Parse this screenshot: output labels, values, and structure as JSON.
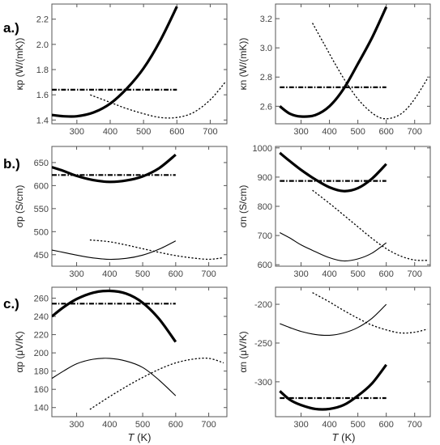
{
  "panel_labels": [
    "a.)",
    "b.)",
    "c.)"
  ],
  "chart_data": [
    {
      "id": "kp",
      "type": "line",
      "panel": "a.)",
      "ylabel": "κp (W/(mK))",
      "xlim": [
        225,
        750
      ],
      "ylim": [
        1.37,
        2.32
      ],
      "xticks": [
        300,
        400,
        500,
        600,
        700
      ],
      "yticks": [
        1.4,
        1.6,
        1.8,
        2.0,
        2.2
      ],
      "ytick_labels": [
        "1.4",
        "1.6",
        "1.8",
        "2.0",
        "2.2"
      ],
      "show_xticklabels": true,
      "series": [
        {
          "style": "thick",
          "x": [
            225,
            260,
            300,
            350,
            400,
            450,
            500,
            550,
            600
          ],
          "y": [
            1.44,
            1.43,
            1.43,
            1.46,
            1.53,
            1.65,
            1.81,
            2.03,
            2.3
          ]
        },
        {
          "style": "thin-dotted",
          "x": [
            340,
            400,
            450,
            500,
            550,
            600,
            650,
            700,
            745
          ],
          "y": [
            1.6,
            1.54,
            1.49,
            1.45,
            1.42,
            1.42,
            1.46,
            1.56,
            1.7
          ]
        },
        {
          "style": "dashdot",
          "x": [
            225,
            600
          ],
          "y": [
            1.64,
            1.64
          ]
        }
      ]
    },
    {
      "id": "kn",
      "type": "line",
      "panel": "a.)",
      "ylabel": "κn (W/(mK))",
      "xlim": [
        210,
        755
      ],
      "ylim": [
        2.48,
        3.3
      ],
      "xticks": [
        300,
        400,
        500,
        600,
        700
      ],
      "yticks": [
        2.6,
        2.8,
        3.0,
        3.2
      ],
      "ytick_labels": [
        "2.6",
        "2.8",
        "3.0",
        "3.2"
      ],
      "show_xticklabels": true,
      "series": [
        {
          "style": "thick",
          "x": [
            225,
            260,
            300,
            350,
            400,
            450,
            500,
            550,
            600
          ],
          "y": [
            2.6,
            2.55,
            2.53,
            2.54,
            2.6,
            2.72,
            2.89,
            3.07,
            3.28
          ]
        },
        {
          "style": "thin-dotted",
          "x": [
            340,
            380,
            420,
            460,
            500,
            540,
            580,
            620,
            660,
            700,
            745
          ],
          "y": [
            3.17,
            3.03,
            2.89,
            2.76,
            2.65,
            2.57,
            2.52,
            2.52,
            2.56,
            2.65,
            2.79
          ]
        },
        {
          "style": "dashdot",
          "x": [
            225,
            600
          ],
          "y": [
            2.73,
            2.73
          ]
        }
      ]
    },
    {
      "id": "sp",
      "type": "line",
      "panel": "b.)",
      "ylabel": "σp (S/cm)",
      "xlim": [
        225,
        755
      ],
      "ylim": [
        425,
        685
      ],
      "xticks": [
        300,
        400,
        500,
        600,
        700
      ],
      "yticks": [
        450,
        500,
        550,
        600,
        650
      ],
      "ytick_labels": [
        "450",
        "500",
        "550",
        "600",
        "650"
      ],
      "show_xticklabels": true,
      "series": [
        {
          "style": "thick",
          "x": [
            225,
            260,
            300,
            350,
            400,
            450,
            500,
            550,
            600
          ],
          "y": [
            640,
            632,
            621,
            612,
            608,
            611,
            620,
            638,
            667
          ]
        },
        {
          "style": "thin",
          "x": [
            225,
            260,
            300,
            350,
            400,
            450,
            500,
            550,
            600
          ],
          "y": [
            460,
            455,
            449,
            443,
            440,
            442,
            449,
            462,
            480
          ]
        },
        {
          "style": "thin-dotted",
          "x": [
            340,
            400,
            450,
            500,
            550,
            600,
            650,
            700,
            740
          ],
          "y": [
            482,
            478,
            471,
            463,
            455,
            448,
            443,
            440,
            443
          ]
        },
        {
          "style": "dashdot",
          "x": [
            225,
            600
          ],
          "y": [
            623,
            623
          ]
        }
      ]
    },
    {
      "id": "sn",
      "type": "line",
      "panel": "b.)",
      "ylabel": "σn (S/cm)",
      "xlim": [
        210,
        755
      ],
      "ylim": [
        595,
        1005
      ],
      "xticks": [
        300,
        400,
        500,
        600,
        700
      ],
      "yticks": [
        600,
        700,
        800,
        900,
        1000
      ],
      "ytick_labels": [
        "600",
        "700",
        "800",
        "900",
        "1000"
      ],
      "show_xticklabels": true,
      "series": [
        {
          "style": "thick",
          "x": [
            225,
            260,
            300,
            350,
            400,
            450,
            500,
            550,
            600
          ],
          "y": [
            983,
            955,
            925,
            892,
            865,
            852,
            862,
            895,
            945
          ]
        },
        {
          "style": "thin",
          "x": [
            225,
            260,
            300,
            350,
            400,
            450,
            500,
            550,
            600
          ],
          "y": [
            710,
            692,
            668,
            645,
            624,
            613,
            620,
            640,
            675
          ]
        },
        {
          "style": "thin-dotted",
          "x": [
            340,
            400,
            450,
            500,
            550,
            600,
            650,
            700,
            745
          ],
          "y": [
            855,
            810,
            770,
            730,
            690,
            655,
            630,
            616,
            615
          ]
        },
        {
          "style": "dashdot",
          "x": [
            225,
            600
          ],
          "y": [
            887,
            887
          ]
        }
      ]
    },
    {
      "id": "ap",
      "type": "line",
      "panel": "c.)",
      "ylabel": "αp (μV/K)",
      "xlim": [
        225,
        755
      ],
      "ylim": [
        130,
        272
      ],
      "xticks": [
        300,
        400,
        500,
        600,
        700
      ],
      "yticks": [
        140,
        160,
        180,
        200,
        220,
        240,
        260
      ],
      "ytick_labels": [
        "140",
        "160",
        "180",
        "200",
        "220",
        "240",
        "260"
      ],
      "show_xticklabels": true,
      "series": [
        {
          "style": "thick",
          "x": [
            225,
            260,
            300,
            350,
            400,
            450,
            500,
            550,
            600
          ],
          "y": [
            240,
            250,
            259,
            266,
            268,
            265,
            255,
            237,
            212
          ]
        },
        {
          "style": "thin",
          "x": [
            225,
            260,
            300,
            350,
            400,
            450,
            500,
            550,
            600
          ],
          "y": [
            172,
            180,
            188,
            193,
            194,
            191,
            184,
            170,
            153
          ]
        },
        {
          "style": "thin-dotted",
          "x": [
            340,
            400,
            450,
            500,
            550,
            600,
            650,
            700,
            745
          ],
          "y": [
            138,
            152,
            163,
            173,
            182,
            189,
            193,
            194,
            189
          ]
        },
        {
          "style": "dashdot",
          "x": [
            225,
            600
          ],
          "y": [
            254,
            254
          ]
        }
      ]
    },
    {
      "id": "an",
      "type": "line",
      "panel": "c.)",
      "ylabel": "αn (μV/K)",
      "xlim": [
        210,
        755
      ],
      "ylim": [
        -345,
        -178
      ],
      "xticks": [
        300,
        400,
        500,
        600,
        700
      ],
      "yticks": [
        -300,
        -250,
        -200
      ],
      "ytick_labels": [
        "-300",
        "-250",
        "-200"
      ],
      "show_xticklabels": true,
      "series": [
        {
          "style": "thick",
          "x": [
            225,
            260,
            300,
            350,
            400,
            450,
            500,
            550,
            600
          ],
          "y": [
            -312,
            -323,
            -330,
            -335,
            -335,
            -330,
            -318,
            -302,
            -278
          ]
        },
        {
          "style": "thin",
          "x": [
            225,
            260,
            300,
            350,
            400,
            450,
            500,
            550,
            600
          ],
          "y": [
            -225,
            -230,
            -235,
            -239,
            -240,
            -237,
            -230,
            -218,
            -200
          ]
        },
        {
          "style": "thin-dotted",
          "x": [
            340,
            400,
            450,
            500,
            550,
            600,
            650,
            700,
            745
          ],
          "y": [
            -185,
            -197,
            -208,
            -218,
            -227,
            -233,
            -237,
            -236,
            -232
          ]
        },
        {
          "style": "dashdot",
          "x": [
            225,
            600
          ],
          "y": [
            -321,
            -321
          ]
        }
      ]
    }
  ],
  "xlabel_symbol": "T",
  "xlabel_unit": "(K)"
}
